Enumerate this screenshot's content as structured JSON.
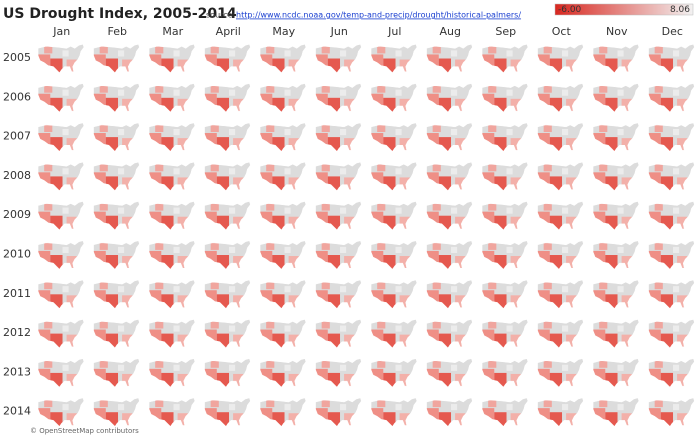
{
  "header": {
    "title": "US Drought Index, 2005-2014",
    "source_label": "source:",
    "source_url": "http://www.ncdc.noaa.gov/temp-and-precip/drought/historical-palmers/"
  },
  "legend": {
    "min": {
      "value": -6,
      "label": "-6.00"
    },
    "max": 8.06,
    "colors": [
      "#d8271f",
      "#f2f2f2"
    ]
  },
  "months": [
    "Jan",
    "Feb",
    "Mar",
    "April",
    "May",
    "Jun",
    "Jul",
    "Aug",
    "Sep",
    "Oct",
    "Nov",
    "Dec"
  ],
  "years": [
    "2005",
    "2006",
    "2007",
    "2008",
    "2009",
    "2010",
    "2011",
    "2012",
    "2013",
    "2014"
  ],
  "attribution": "© OpenStreetMap contributors"
}
